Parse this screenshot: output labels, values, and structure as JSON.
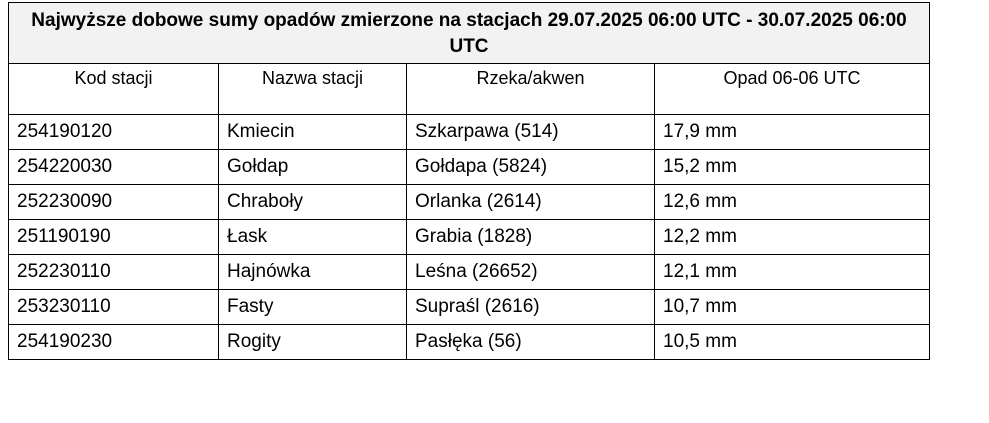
{
  "title": "Najwyższe dobowe sumy opadów zmierzone na stacjach 29.07.2025 06:00 UTC - 30.07.2025 06:00 UTC",
  "table": {
    "headers": [
      "Kod stacji",
      "Nazwa stacji",
      "Rzeka/akwen",
      "Opad 06-06 UTC"
    ],
    "rows": [
      [
        "254190120",
        "Kmiecin",
        "Szkarpawa (514)",
        "17,9 mm"
      ],
      [
        "254220030",
        "Gołdap",
        "Gołdapa (5824)",
        "15,2 mm"
      ],
      [
        "252230090",
        "Chraboły",
        "Orlanka (2614)",
        "12,6 mm"
      ],
      [
        "251190190",
        "Łask",
        "Grabia (1828)",
        "12,2 mm"
      ],
      [
        "252230110",
        "Hajnówka",
        "Leśna (26652)",
        "12,1 mm"
      ],
      [
        "253230110",
        "Fasty",
        "Supraśl (2616)",
        "10,7 mm"
      ],
      [
        "254190230",
        "Rogity",
        "Pasłęka (56)",
        "10,5 mm"
      ]
    ]
  }
}
